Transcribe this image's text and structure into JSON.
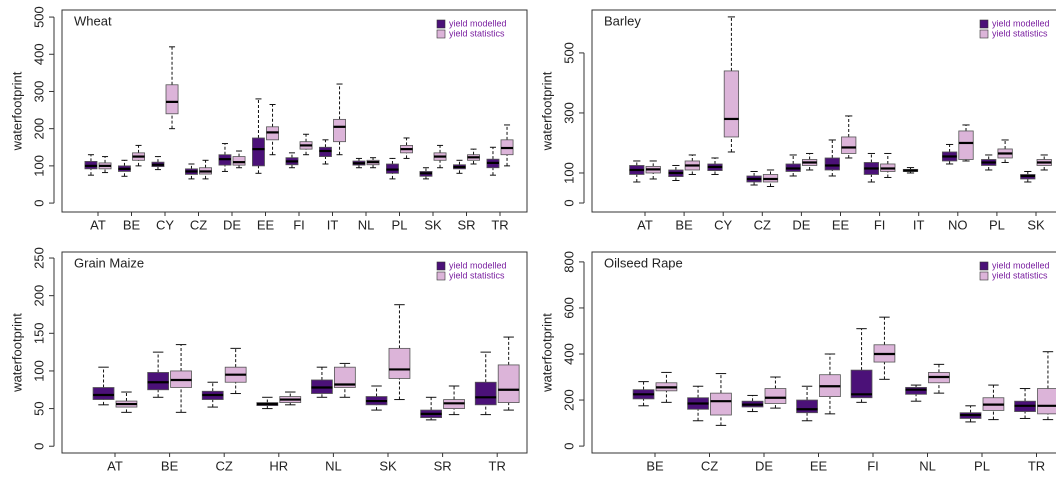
{
  "chart_data": [
    {
      "type": "box",
      "title": "Wheat",
      "y_label": "waterfootprint",
      "categories": [
        "AT",
        "BE",
        "CY",
        "CZ",
        "DE",
        "EE",
        "FI",
        "IT",
        "NL",
        "PL",
        "SK",
        "SR",
        "TR"
      ],
      "series": [
        {
          "name": "yield modelled",
          "color": "#4b1178",
          "values": [
            [
              75,
              92,
              100,
              112,
              130
            ],
            [
              72,
              85,
              92,
              100,
              115
            ],
            [
              90,
              98,
              103,
              110,
              125
            ],
            [
              65,
              77,
              85,
              92,
              105
            ],
            [
              85,
              102,
              118,
              130,
              160
            ],
            [
              80,
              100,
              145,
              175,
              280
            ],
            [
              95,
              103,
              112,
              122,
              135
            ],
            [
              105,
              125,
              140,
              150,
              170
            ],
            [
              95,
              102,
              107,
              113,
              120
            ],
            [
              65,
              80,
              90,
              105,
              120
            ],
            [
              65,
              72,
              80,
              85,
              95
            ],
            [
              80,
              92,
              97,
              103,
              115
            ],
            [
              75,
              95,
              108,
              118,
              150
            ]
          ]
        },
        {
          "name": "yield statistics",
          "color": "#dcb4d9",
          "values": [
            [
              82,
              92,
              100,
              108,
              125
            ],
            [
              100,
              115,
              125,
              135,
              155
            ],
            [
              200,
              240,
              272,
              318,
              420
            ],
            [
              65,
              78,
              85,
              95,
              115
            ],
            [
              95,
              102,
              110,
              125,
              140
            ],
            [
              130,
              170,
              190,
              205,
              265
            ],
            [
              130,
              145,
              155,
              165,
              185
            ],
            [
              130,
              165,
              205,
              225,
              320
            ],
            [
              95,
              103,
              110,
              115,
              122
            ],
            [
              120,
              135,
              145,
              155,
              175
            ],
            [
              95,
              115,
              125,
              135,
              155
            ],
            [
              105,
              115,
              123,
              130,
              145
            ],
            [
              100,
              130,
              148,
              170,
              210
            ]
          ]
        }
      ],
      "ylim": [
        -24,
        519
      ],
      "yticks": [
        0,
        100,
        200,
        300,
        400,
        500
      ],
      "legend": "top-right"
    },
    {
      "type": "box",
      "title": "Barley",
      "y_label": "waterfootprint",
      "categories": [
        "AT",
        "BE",
        "CY",
        "CZ",
        "DE",
        "EE",
        "FI",
        "IT",
        "NO",
        "PL",
        "SK"
      ],
      "series": [
        {
          "name": "yield modelled",
          "color": "#4b1178",
          "values": [
            [
              70,
              95,
              110,
              125,
              140
            ],
            [
              75,
              88,
              100,
              110,
              125
            ],
            [
              95,
              108,
              120,
              130,
              150
            ],
            [
              60,
              70,
              80,
              90,
              105
            ],
            [
              90,
              105,
              115,
              130,
              160
            ],
            [
              90,
              110,
              125,
              150,
              210
            ],
            [
              70,
              95,
              115,
              135,
              165
            ],
            [
              100,
              105,
              108,
              112,
              118
            ],
            [
              130,
              140,
              155,
              170,
              195
            ],
            [
              110,
              125,
              135,
              145,
              160
            ],
            [
              70,
              80,
              90,
              95,
              105
            ]
          ]
        },
        {
          "name": "yield statistics",
          "color": "#dcb4d9",
          "values": [
            [
              80,
              100,
              112,
              122,
              140
            ],
            [
              95,
              110,
              125,
              140,
              160
            ],
            [
              170,
              220,
              280,
              440,
              620
            ],
            [
              55,
              70,
              80,
              95,
              110
            ],
            [
              110,
              125,
              135,
              145,
              165
            ],
            [
              150,
              165,
              185,
              220,
              290
            ],
            [
              85,
              105,
              115,
              130,
              165
            ],
            null,
            [
              140,
              145,
              200,
              240,
              260
            ],
            [
              135,
              150,
              165,
              180,
              210
            ],
            [
              110,
              125,
              135,
              145,
              160
            ]
          ]
        }
      ],
      "ylim": [
        -30,
        643
      ],
      "yticks": [
        0,
        100,
        300,
        500
      ],
      "legend": "top-right"
    },
    {
      "type": "box",
      "title": "Grain Maize",
      "y_label": "waterfootprint",
      "categories": [
        "AT",
        "BE",
        "CZ",
        "HR",
        "NL",
        "SK",
        "SR",
        "TR"
      ],
      "series": [
        {
          "name": "yield modelled",
          "color": "#4b1178",
          "values": [
            [
              55,
              62,
              68,
              78,
              105
            ],
            [
              65,
              75,
              85,
              98,
              125
            ],
            [
              52,
              62,
              68,
              73,
              85
            ],
            [
              50,
              54,
              56,
              58,
              65
            ],
            [
              65,
              70,
              78,
              88,
              105
            ],
            [
              48,
              55,
              60,
              66,
              80
            ],
            [
              35,
              38,
              43,
              48,
              65
            ],
            [
              42,
              55,
              65,
              85,
              125
            ]
          ]
        },
        {
          "name": "yield statistics",
          "color": "#dcb4d9",
          "values": [
            [
              45,
              52,
              56,
              60,
              72
            ],
            [
              45,
              78,
              88,
              100,
              135
            ],
            [
              70,
              85,
              95,
              105,
              130
            ],
            [
              55,
              58,
              62,
              66,
              72
            ],
            [
              65,
              78,
              82,
              105,
              110
            ],
            [
              62,
              90,
              102,
              130,
              188
            ],
            [
              42,
              50,
              57,
              62,
              80
            ],
            [
              48,
              58,
              75,
              108,
              145
            ]
          ]
        }
      ],
      "ylim": [
        -9,
        258
      ],
      "yticks": [
        0,
        50,
        100,
        150,
        200,
        250
      ],
      "legend": "top-right"
    },
    {
      "type": "box",
      "title": "Oilseed Rape",
      "y_label": "waterfootprint",
      "categories": [
        "BE",
        "CZ",
        "DE",
        "EE",
        "FI",
        "NL",
        "PL",
        "TR"
      ],
      "series": [
        {
          "name": "yield modelled",
          "color": "#4b1178",
          "values": [
            [
              175,
              205,
              225,
              245,
              280
            ],
            [
              110,
              160,
              185,
              210,
              260
            ],
            [
              150,
              170,
              180,
              195,
              220
            ],
            [
              110,
              145,
              160,
              200,
              260
            ],
            [
              190,
              210,
              225,
              330,
              510
            ],
            [
              195,
              225,
              245,
              255,
              265
            ],
            [
              105,
              120,
              135,
              145,
              175
            ],
            [
              120,
              150,
              175,
              195,
              250
            ]
          ]
        },
        {
          "name": "yield statistics",
          "color": "#dcb4d9",
          "values": [
            [
              190,
              240,
              255,
              275,
              320
            ],
            [
              90,
              135,
              195,
              230,
              315
            ],
            [
              165,
              185,
              210,
              250,
              300
            ],
            [
              140,
              215,
              260,
              310,
              400
            ],
            [
              290,
              365,
              400,
              440,
              560
            ],
            [
              230,
              275,
              300,
              320,
              355
            ],
            [
              115,
              155,
              180,
              210,
              265
            ],
            [
              115,
              140,
              175,
              250,
              410
            ]
          ]
        }
      ],
      "ylim": [
        -30,
        843
      ],
      "yticks": [
        0,
        200,
        400,
        600,
        800
      ],
      "legend": "top-right"
    }
  ]
}
